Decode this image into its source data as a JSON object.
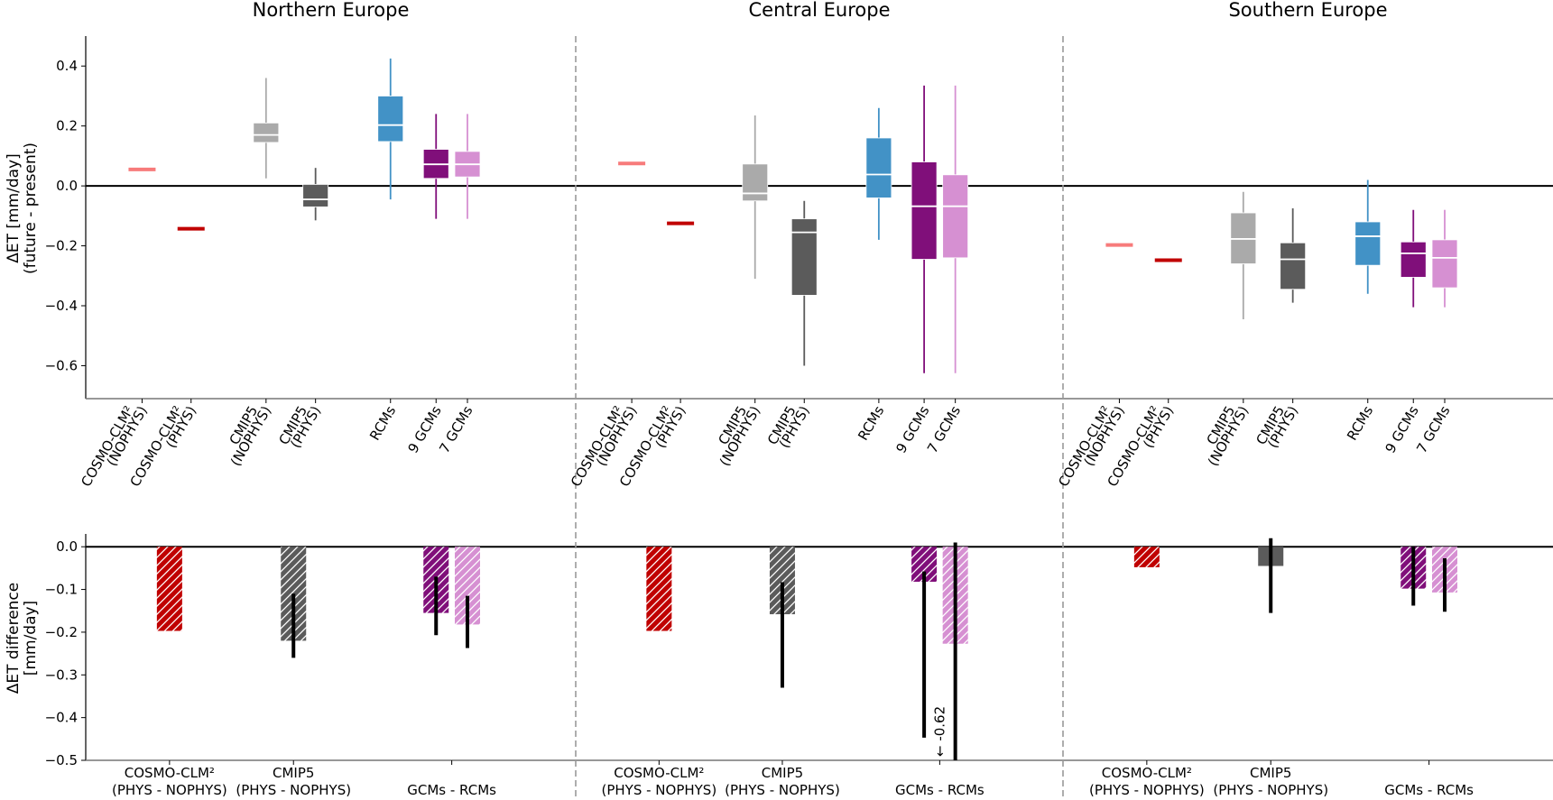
{
  "chart_data": [
    {
      "type": "box",
      "panel": "top",
      "ylabel_lines": [
        "ΔET [mm/day]",
        "(future - present)"
      ],
      "ylim": [
        -0.71,
        0.5
      ],
      "yticks": [
        0.4,
        0.2,
        0.0,
        -0.2,
        -0.4,
        -0.6
      ],
      "ytick_labels": [
        "0.4",
        "0.2",
        "0.0",
        "−0.2",
        "−0.4",
        "−0.6"
      ],
      "categories": [
        {
          "key": "cosmo_nophys",
          "lines": [
            "COSMO-CLM²",
            "(NOPHYS)"
          ],
          "color": "#f77b7b"
        },
        {
          "key": "cosmo_phys",
          "lines": [
            "COSMO-CLM²",
            "(PHYS)"
          ],
          "color": "#c00000"
        },
        {
          "key": "cmip5_nophys",
          "lines": [
            "CMIP5",
            "(NOPHYS)"
          ],
          "color": "#aaaaaa"
        },
        {
          "key": "cmip5_phys",
          "lines": [
            "CMIP5",
            "(PHYS)"
          ],
          "color": "#5b5b5b"
        },
        {
          "key": "rcms",
          "lines": [
            "RCMs"
          ],
          "color": "#4292c6"
        },
        {
          "key": "gcms9",
          "lines": [
            "9 GCMs"
          ],
          "color": "#800f7a"
        },
        {
          "key": "gcms7",
          "lines": [
            "7 GCMs"
          ],
          "color": "#d690d2"
        }
      ],
      "regions": [
        {
          "title": "Northern Europe",
          "series": [
            {
              "key": "cosmo_nophys",
              "value": 0.055
            },
            {
              "key": "cosmo_phys",
              "value": -0.143
            },
            {
              "key": "cmip5_nophys",
              "whislo": 0.025,
              "q1": 0.145,
              "med": 0.17,
              "q3": 0.21,
              "whishi": 0.36
            },
            {
              "key": "cmip5_phys",
              "whislo": -0.115,
              "q1": -0.07,
              "med": -0.045,
              "q3": 0.005,
              "whishi": 0.06
            },
            {
              "key": "rcms",
              "whislo": -0.045,
              "q1": 0.148,
              "med": 0.203,
              "q3": 0.3,
              "whishi": 0.425
            },
            {
              "key": "gcms9",
              "whislo": -0.11,
              "q1": 0.025,
              "med": 0.072,
              "q3": 0.122,
              "whishi": 0.24
            },
            {
              "key": "gcms7",
              "whislo": -0.11,
              "q1": 0.03,
              "med": 0.072,
              "q3": 0.115,
              "whishi": 0.24
            }
          ]
        },
        {
          "title": "Central Europe",
          "series": [
            {
              "key": "cosmo_nophys",
              "value": 0.075
            },
            {
              "key": "cosmo_phys",
              "value": -0.125
            },
            {
              "key": "cmip5_nophys",
              "whislo": -0.31,
              "q1": -0.05,
              "med": -0.025,
              "q3": 0.073,
              "whishi": 0.235
            },
            {
              "key": "cmip5_phys",
              "whislo": -0.6,
              "q1": -0.365,
              "med": -0.155,
              "q3": -0.11,
              "whishi": -0.05
            },
            {
              "key": "rcms",
              "whislo": -0.18,
              "q1": -0.04,
              "med": 0.038,
              "q3": 0.16,
              "whishi": 0.26
            },
            {
              "key": "gcms9",
              "whislo": -0.625,
              "q1": -0.245,
              "med": -0.068,
              "q3": 0.08,
              "whishi": 0.335
            },
            {
              "key": "gcms7",
              "whislo": -0.625,
              "q1": -0.24,
              "med": -0.068,
              "q3": 0.037,
              "whishi": 0.335
            }
          ]
        },
        {
          "title": "Southern Europe",
          "series": [
            {
              "key": "cosmo_nophys",
              "value": -0.197
            },
            {
              "key": "cosmo_phys",
              "value": -0.248
            },
            {
              "key": "cmip5_nophys",
              "whislo": -0.445,
              "q1": -0.26,
              "med": -0.177,
              "q3": -0.09,
              "whishi": -0.02
            },
            {
              "key": "cmip5_phys",
              "whislo": -0.39,
              "q1": -0.345,
              "med": -0.245,
              "q3": -0.19,
              "whishi": -0.075
            },
            {
              "key": "rcms",
              "whislo": -0.36,
              "q1": -0.265,
              "med": -0.168,
              "q3": -0.12,
              "whishi": 0.02
            },
            {
              "key": "gcms9",
              "whislo": -0.405,
              "q1": -0.305,
              "med": -0.225,
              "q3": -0.187,
              "whishi": -0.08
            },
            {
              "key": "gcms7",
              "whislo": -0.405,
              "q1": -0.34,
              "med": -0.24,
              "q3": -0.18,
              "whishi": -0.08
            }
          ]
        }
      ]
    },
    {
      "type": "bar",
      "panel": "bottom",
      "ylabel_lines": [
        "ΔET difference",
        "[mm/day]"
      ],
      "ylim": [
        -0.5,
        0.03
      ],
      "yticks": [
        0.0,
        -0.1,
        -0.2,
        -0.3,
        -0.4,
        -0.5
      ],
      "ytick_labels": [
        "0.0",
        "−0.1",
        "−0.2",
        "−0.3",
        "−0.4",
        "−0.5"
      ],
      "groups": [
        {
          "key": "cosmo",
          "lines": [
            "COSMO-CLM²",
            "(PHYS - NOPHYS)"
          ]
        },
        {
          "key": "cmip5",
          "lines": [
            "CMIP5",
            "(PHYS - NOPHYS)"
          ]
        },
        {
          "key": "gcms_rcms",
          "lines": [
            "GCMs - RCMs"
          ]
        }
      ],
      "regions": [
        {
          "title": "Northern Europe",
          "bars": [
            {
              "key": "cosmo",
              "color": "#c00000",
              "hatched": true,
              "value": -0.197
            },
            {
              "key": "cmip5",
              "color": "#5b5b5b",
              "hatched": true,
              "value": -0.22,
              "err": [
                -0.11,
                -0.26
              ]
            },
            {
              "key": "gcms9",
              "color": "#800f7a",
              "hatched": true,
              "value": -0.155,
              "err": [
                -0.07,
                -0.207
              ]
            },
            {
              "key": "gcms7",
              "color": "#d690d2",
              "hatched": true,
              "value": -0.182,
              "err": [
                -0.115,
                -0.237
              ]
            }
          ]
        },
        {
          "title": "Central Europe",
          "bars": [
            {
              "key": "cosmo",
              "color": "#c00000",
              "hatched": true,
              "value": -0.197
            },
            {
              "key": "cmip5",
              "color": "#5b5b5b",
              "hatched": true,
              "value": -0.158,
              "err": [
                -0.083,
                -0.33
              ]
            },
            {
              "key": "gcms9",
              "color": "#800f7a",
              "hatched": true,
              "value": -0.082,
              "err": [
                -0.058,
                -0.447
              ]
            },
            {
              "key": "gcms7",
              "color": "#d690d2",
              "hatched": true,
              "value": -0.227,
              "err": [
                0.01,
                -0.62
              ]
            }
          ],
          "annotation": "← -0.62"
        },
        {
          "title": "Southern Europe",
          "bars": [
            {
              "key": "cosmo",
              "color": "#c00000",
              "hatched": true,
              "value": -0.048
            },
            {
              "key": "cmip5",
              "color": "#5b5b5b",
              "hatched": false,
              "value": -0.045,
              "err": [
                0.02,
                -0.155
              ]
            },
            {
              "key": "gcms9",
              "color": "#800f7a",
              "hatched": true,
              "value": -0.098,
              "err": [
                0.0,
                -0.138
              ]
            },
            {
              "key": "gcms7",
              "color": "#d690d2",
              "hatched": true,
              "value": -0.107,
              "err": [
                -0.027,
                -0.152
              ]
            }
          ]
        }
      ]
    }
  ]
}
